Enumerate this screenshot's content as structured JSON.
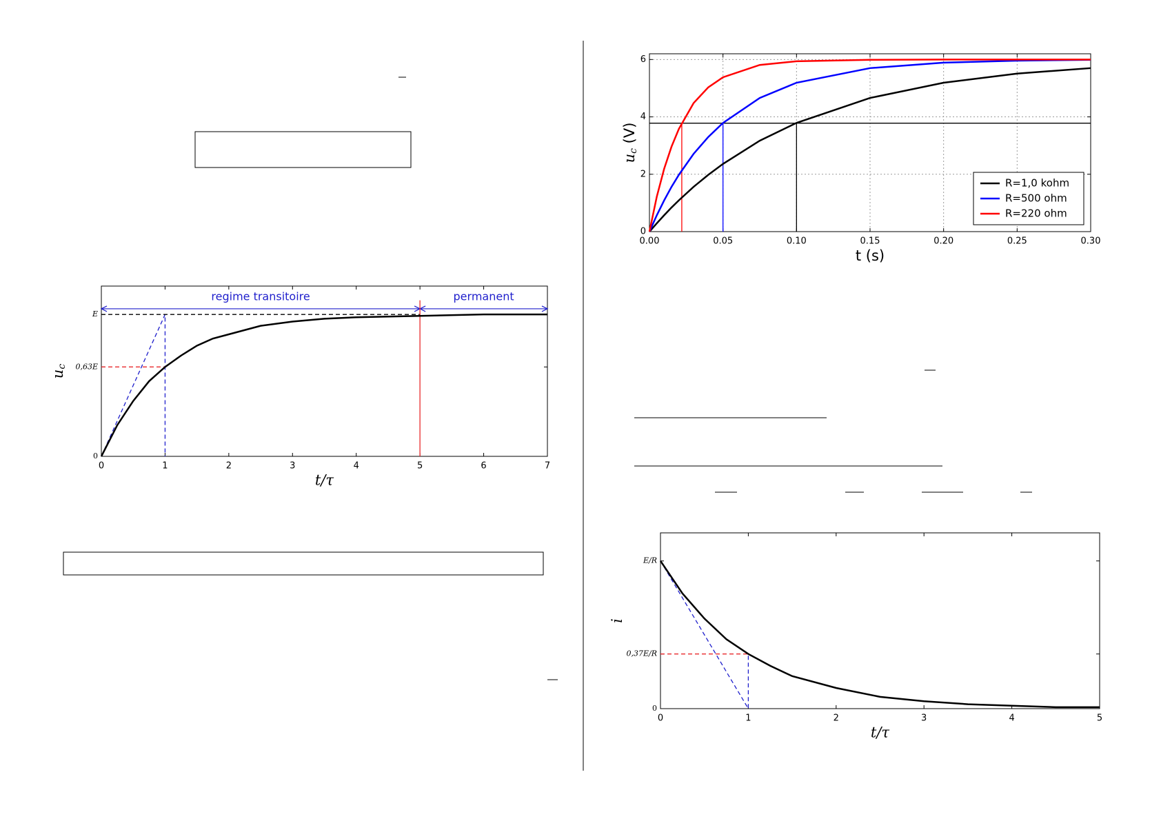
{
  "chart_data": [
    {
      "type": "line",
      "xlabel": "t/τ",
      "ylabel": {
        "text": "u",
        "sub": "c"
      },
      "xlim": [
        0,
        7
      ],
      "ylim": [
        0,
        1.2
      ],
      "xticks": [
        0,
        1,
        2,
        3,
        4,
        5,
        6,
        7
      ],
      "yticks": [
        0,
        {
          "value": 0.63,
          "label": "0,63E"
        },
        {
          "value": 1,
          "label": "E"
        }
      ],
      "grid": false,
      "series": [
        {
          "color": "#000000",
          "x": [
            0,
            0.25,
            0.5,
            0.75,
            1,
            1.25,
            1.5,
            1.75,
            2,
            2.5,
            3,
            3.5,
            4,
            5,
            6,
            7
          ],
          "values": [
            0,
            0.22,
            0.39,
            0.53,
            0.63,
            0.71,
            0.78,
            0.83,
            0.86,
            0.92,
            0.95,
            0.97,
            0.98,
            0.99,
            1,
            1
          ]
        }
      ],
      "guides": [
        {
          "color": "#1f1fcc",
          "dashed": true,
          "x": [
            0,
            1,
            1
          ],
          "values": [
            0,
            1,
            0
          ]
        },
        {
          "color": "#e8282b",
          "dashed": true,
          "x": [
            0,
            1
          ],
          "values": [
            0.63,
            0.63
          ]
        },
        {
          "color": "#000000",
          "dashed": true,
          "x": [
            0,
            5
          ],
          "values": [
            1,
            1
          ]
        },
        {
          "color": "#e8282b",
          "dashed": false,
          "x": [
            5,
            5
          ],
          "values": [
            0,
            1.1
          ]
        }
      ],
      "spans": [
        {
          "label": "regime transitoire",
          "from": 0,
          "to": 5
        },
        {
          "label": "permanent",
          "from": 5,
          "to": 7
        }
      ],
      "span_y": 1.04,
      "span_color": "#1f1fcc"
    },
    {
      "type": "line",
      "xlabel": "t (s)",
      "ylabel": {
        "text": "u",
        "sub": "c",
        "unit": " (V)"
      },
      "xlim": [
        0,
        0.3
      ],
      "ylim": [
        0,
        6.2
      ],
      "xticks": [
        {
          "value": 0,
          "label": "0.00"
        },
        {
          "value": 0.05,
          "label": "0.05"
        },
        {
          "value": 0.1,
          "label": "0.10"
        },
        {
          "value": 0.15,
          "label": "0.15"
        },
        {
          "value": 0.2,
          "label": "0.20"
        },
        {
          "value": 0.25,
          "label": "0.25"
        },
        {
          "value": 0.3,
          "label": "0.30"
        }
      ],
      "yticks": [
        0,
        2,
        4,
        6
      ],
      "grid": true,
      "legend": "lower right",
      "x": [
        0,
        0.005,
        0.01,
        0.015,
        0.02,
        0.03,
        0.04,
        0.05,
        0.075,
        0.1,
        0.15,
        0.2,
        0.25,
        0.3
      ],
      "series": [
        {
          "name": "R=1,0 kohm",
          "color": "#000000",
          "values": [
            0,
            0.29,
            0.57,
            0.84,
            1.09,
            1.56,
            1.98,
            2.36,
            3.17,
            3.79,
            4.66,
            5.19,
            5.51,
            5.7
          ]
        },
        {
          "name": "R=500 ohm",
          "color": "#0000ff",
          "values": [
            0,
            0.57,
            1.09,
            1.56,
            1.98,
            2.71,
            3.3,
            3.79,
            4.66,
            5.19,
            5.7,
            5.89,
            5.96,
            5.99
          ]
        },
        {
          "name": "R=220 ohm",
          "color": "#ff0000",
          "values": [
            0,
            1.22,
            2.19,
            2.96,
            3.58,
            4.48,
            5.03,
            5.38,
            5.81,
            5.94,
            5.99,
            6,
            6,
            6
          ]
        }
      ],
      "guides": [
        {
          "color": "#000000",
          "dashed": false,
          "x": [
            0,
            0.3
          ],
          "values": [
            3.78,
            3.78
          ]
        },
        {
          "color": "#ff0000",
          "dashed": false,
          "x": [
            0.022,
            0.022
          ],
          "values": [
            0,
            3.78
          ]
        },
        {
          "color": "#0000ff",
          "dashed": false,
          "x": [
            0.05,
            0.05
          ],
          "values": [
            0,
            3.78
          ]
        },
        {
          "color": "#000000",
          "dashed": false,
          "x": [
            0.1,
            0.1
          ],
          "values": [
            0,
            3.78
          ]
        }
      ]
    },
    {
      "type": "line",
      "xlabel": "t/τ",
      "ylabel": {
        "text": "i"
      },
      "xlim": [
        0,
        5
      ],
      "ylim": [
        0,
        1.19
      ],
      "xticks": [
        0,
        1,
        2,
        3,
        4,
        5
      ],
      "yticks": [
        0,
        {
          "value": 0.37,
          "label": "0,37E/R"
        },
        {
          "value": 1,
          "label": "E/R"
        }
      ],
      "grid": false,
      "series": [
        {
          "color": "#000000",
          "x": [
            0,
            0.25,
            0.5,
            0.75,
            1,
            1.25,
            1.5,
            2,
            2.5,
            3,
            3.5,
            4,
            4.5,
            5
          ],
          "values": [
            1,
            0.78,
            0.61,
            0.47,
            0.37,
            0.29,
            0.22,
            0.14,
            0.08,
            0.05,
            0.03,
            0.02,
            0.01,
            0.01
          ]
        }
      ],
      "guides": [
        {
          "color": "#1f1fcc",
          "dashed": true,
          "x": [
            0,
            1,
            1
          ],
          "values": [
            1,
            0,
            0.37
          ]
        },
        {
          "color": "#e8282b",
          "dashed": true,
          "x": [
            0,
            1
          ],
          "values": [
            0.37,
            0.37
          ]
        }
      ]
    }
  ]
}
